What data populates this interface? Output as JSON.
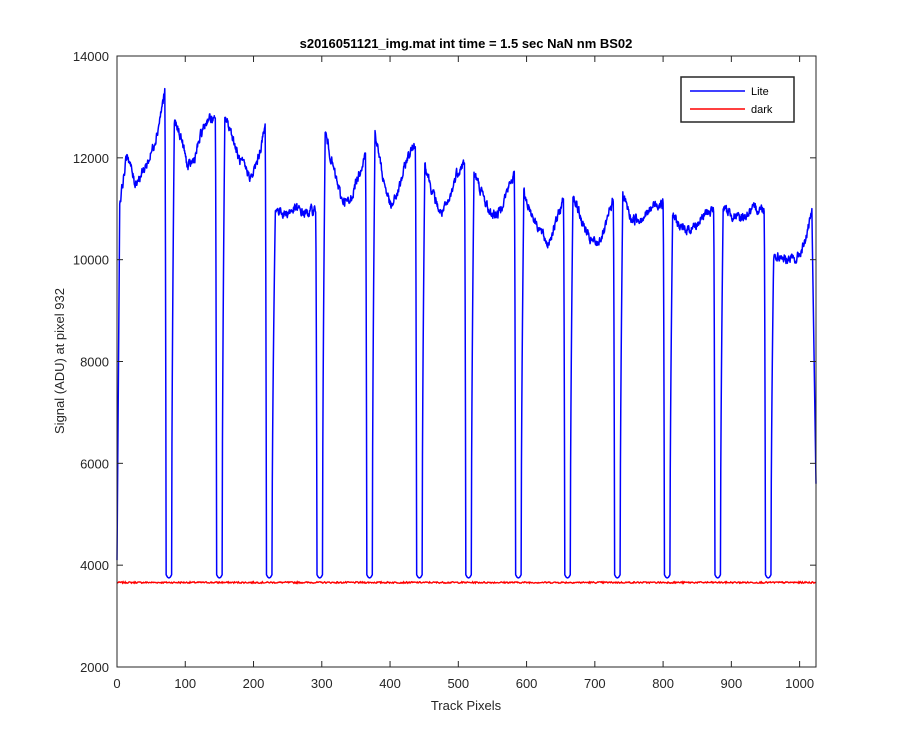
{
  "chart_data": {
    "type": "line",
    "title": "s2016051121_img.mat int time = 1.5 sec  NaN nm BS02",
    "xlabel": "Track Pixels",
    "ylabel": "Signal (ADU) at pixel 932",
    "xlim": [
      0,
      1024
    ],
    "ylim": [
      2000,
      14000
    ],
    "xticks": [
      0,
      100,
      200,
      300,
      400,
      500,
      600,
      700,
      800,
      900,
      1000
    ],
    "yticks": [
      2000,
      4000,
      6000,
      8000,
      10000,
      12000,
      14000
    ],
    "grid": false,
    "legend_position": "top-right",
    "series": [
      {
        "name": "Lite",
        "color": "#0000ff",
        "shape": {
          "start": [
            0,
            4100
          ],
          "end": [
            1024,
            5600
          ],
          "trough_value": 3750,
          "trough_centers": [
            76,
            150,
            223,
            297,
            370,
            443,
            515,
            588,
            660,
            733,
            806,
            880,
            954
          ],
          "plateaus": [
            {
              "from": 4,
              "to": 70,
              "values": [
                11100,
                12100,
                11500,
                11700,
                12000,
                12500,
                13300
              ]
            },
            {
              "from": 84,
              "to": 144,
              "values": [
                12700,
                12400,
                11800,
                12000,
                12500,
                12800,
                12700
              ]
            },
            {
              "from": 158,
              "to": 217,
              "values": [
                12800,
                12500,
                12000,
                11800,
                11600,
                12000,
                12600
              ]
            },
            {
              "from": 232,
              "to": 291,
              "values": [
                11000,
                10900,
                11000,
                10900,
                11000
              ]
            },
            {
              "from": 305,
              "to": 364,
              "values": [
                12500,
                11800,
                11200,
                11100,
                11600,
                12100
              ]
            },
            {
              "from": 378,
              "to": 437,
              "values": [
                12500,
                11600,
                11000,
                11400,
                12000,
                12300
              ]
            },
            {
              "from": 451,
              "to": 509,
              "values": [
                11900,
                11300,
                10900,
                11100,
                11700,
                11900
              ]
            },
            {
              "from": 523,
              "to": 582,
              "values": [
                11700,
                11300,
                10900,
                10900,
                11300,
                11700
              ]
            },
            {
              "from": 596,
              "to": 654,
              "values": [
                11300,
                10900,
                10600,
                10300,
                10700,
                11200
              ]
            },
            {
              "from": 668,
              "to": 727,
              "values": [
                11300,
                10800,
                10400,
                10300,
                10600,
                11200
              ]
            },
            {
              "from": 741,
              "to": 800,
              "values": [
                11300,
                10800,
                10800,
                10900,
                11100,
                11100
              ]
            },
            {
              "from": 814,
              "to": 874,
              "values": [
                10900,
                10600,
                10600,
                10700,
                10900,
                11000
              ]
            },
            {
              "from": 888,
              "to": 948,
              "values": [
                11000,
                10900,
                10800,
                10900,
                11000,
                11000
              ]
            },
            {
              "from": 962,
              "to": 1018,
              "values": [
                10100,
                10050,
                10000,
                10000,
                10300,
                10900
              ]
            }
          ]
        }
      },
      {
        "name": "dark",
        "color": "#ff0000",
        "constant_value": 3660,
        "x_range": [
          0,
          1024
        ]
      }
    ]
  }
}
